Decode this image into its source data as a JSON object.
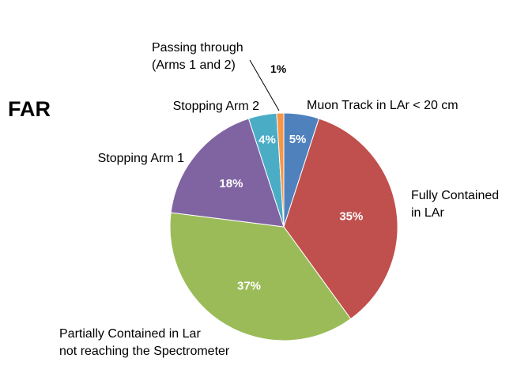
{
  "chart_data": {
    "type": "pie",
    "title": "FAR",
    "categories": [
      "Muon Track in LAr < 20 cm",
      "Fully Contained in LAr",
      "Partially Contained in Lar not reaching  the Spectrometer",
      "Stopping Arm 1",
      "Stopping Arm 2",
      "Passing through (Arms 1 and 2)"
    ],
    "label_lines": [
      [
        "Muon Track in LAr < 20 cm"
      ],
      [
        "Fully Contained",
        "in LAr"
      ],
      [
        "Partially Contained in Lar",
        "not reaching  the Spectrometer"
      ],
      [
        "Stopping Arm 1"
      ],
      [
        "Stopping Arm 2"
      ],
      [
        "Passing through",
        "(Arms 1 and 2)"
      ]
    ],
    "values": [
      5,
      35,
      37,
      18,
      4,
      1
    ],
    "value_labels": [
      "5%",
      "35%",
      "37%",
      "18%",
      "4%",
      "1%"
    ],
    "colors": [
      "#4f81bd",
      "#c0504d",
      "#9bbb59",
      "#8064a2",
      "#4bacc6",
      "#f79646"
    ],
    "legend": "none (labels placed next to slices)"
  }
}
